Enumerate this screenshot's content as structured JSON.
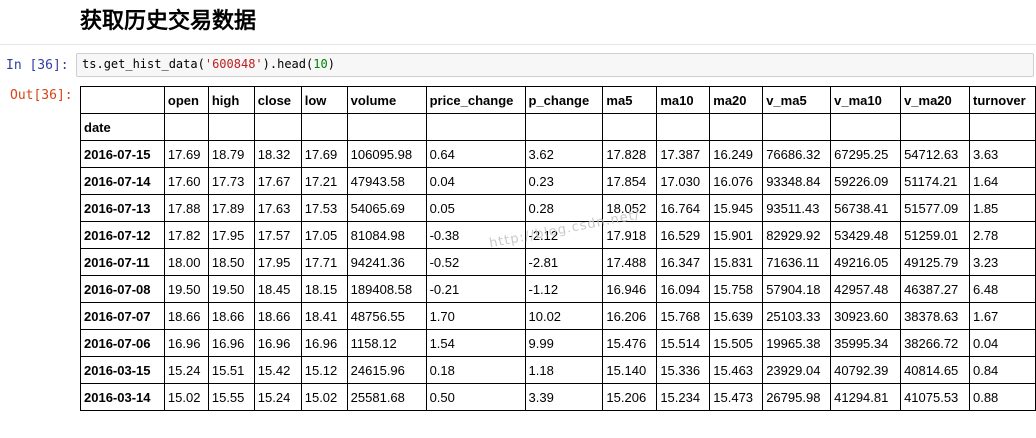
{
  "heading": "获取历史交易数据",
  "cell": {
    "in_prompt": "In  [36]:",
    "out_prompt": "Out[36]:",
    "code": {
      "obj": "ts",
      "dot1": ".",
      "func": "get_hist_data",
      "open_paren": "(",
      "arg": "'600848'",
      "close_paren": ")",
      "dot2": ".",
      "method": "head",
      "open_paren2": "(",
      "num": "10",
      "close_paren2": ")"
    }
  },
  "table": {
    "index_name": "date",
    "columns": [
      "open",
      "high",
      "close",
      "low",
      "volume",
      "price_change",
      "p_change",
      "ma5",
      "ma10",
      "ma20",
      "v_ma5",
      "v_ma10",
      "v_ma20",
      "turnover"
    ],
    "rows": [
      {
        "date": "2016-07-15",
        "cells": [
          "17.69",
          "18.79",
          "18.32",
          "17.69",
          "106095.98",
          "0.64",
          "3.62",
          "17.828",
          "17.387",
          "16.249",
          "76686.32",
          "67295.25",
          "54712.63",
          "3.63"
        ]
      },
      {
        "date": "2016-07-14",
        "cells": [
          "17.60",
          "17.73",
          "17.67",
          "17.21",
          "47943.58",
          "0.04",
          "0.23",
          "17.854",
          "17.030",
          "16.076",
          "93348.84",
          "59226.09",
          "51174.21",
          "1.64"
        ]
      },
      {
        "date": "2016-07-13",
        "cells": [
          "17.88",
          "17.89",
          "17.63",
          "17.53",
          "54065.69",
          "0.05",
          "0.28",
          "18.052",
          "16.764",
          "15.945",
          "93511.43",
          "56738.41",
          "51577.09",
          "1.85"
        ]
      },
      {
        "date": "2016-07-12",
        "cells": [
          "17.82",
          "17.95",
          "17.57",
          "17.05",
          "81084.98",
          "-0.38",
          "-2.12",
          "17.918",
          "16.529",
          "15.901",
          "82929.92",
          "53429.48",
          "51259.01",
          "2.78"
        ]
      },
      {
        "date": "2016-07-11",
        "cells": [
          "18.00",
          "18.50",
          "17.95",
          "17.71",
          "94241.36",
          "-0.52",
          "-2.81",
          "17.488",
          "16.347",
          "15.831",
          "71636.11",
          "49216.05",
          "49125.79",
          "3.23"
        ]
      },
      {
        "date": "2016-07-08",
        "cells": [
          "19.50",
          "19.50",
          "18.45",
          "18.15",
          "189408.58",
          "-0.21",
          "-1.12",
          "16.946",
          "16.094",
          "15.758",
          "57904.18",
          "42957.48",
          "46387.27",
          "6.48"
        ]
      },
      {
        "date": "2016-07-07",
        "cells": [
          "18.66",
          "18.66",
          "18.66",
          "18.41",
          "48756.55",
          "1.70",
          "10.02",
          "16.206",
          "15.768",
          "15.639",
          "25103.33",
          "30923.60",
          "38378.63",
          "1.67"
        ]
      },
      {
        "date": "2016-07-06",
        "cells": [
          "16.96",
          "16.96",
          "16.96",
          "16.96",
          "1158.12",
          "1.54",
          "9.99",
          "15.476",
          "15.514",
          "15.505",
          "19965.38",
          "35995.34",
          "38266.72",
          "0.04"
        ]
      },
      {
        "date": "2016-03-15",
        "cells": [
          "15.24",
          "15.51",
          "15.42",
          "15.12",
          "24615.96",
          "0.18",
          "1.18",
          "15.140",
          "15.336",
          "15.463",
          "23929.04",
          "40792.39",
          "40814.65",
          "0.84"
        ]
      },
      {
        "date": "2016-03-14",
        "cells": [
          "15.02",
          "15.55",
          "15.24",
          "15.02",
          "25581.68",
          "0.50",
          "3.39",
          "15.206",
          "15.234",
          "15.473",
          "26795.98",
          "41294.81",
          "41075.53",
          "0.88"
        ]
      }
    ]
  },
  "watermark": "http://blog.csdn.net/"
}
